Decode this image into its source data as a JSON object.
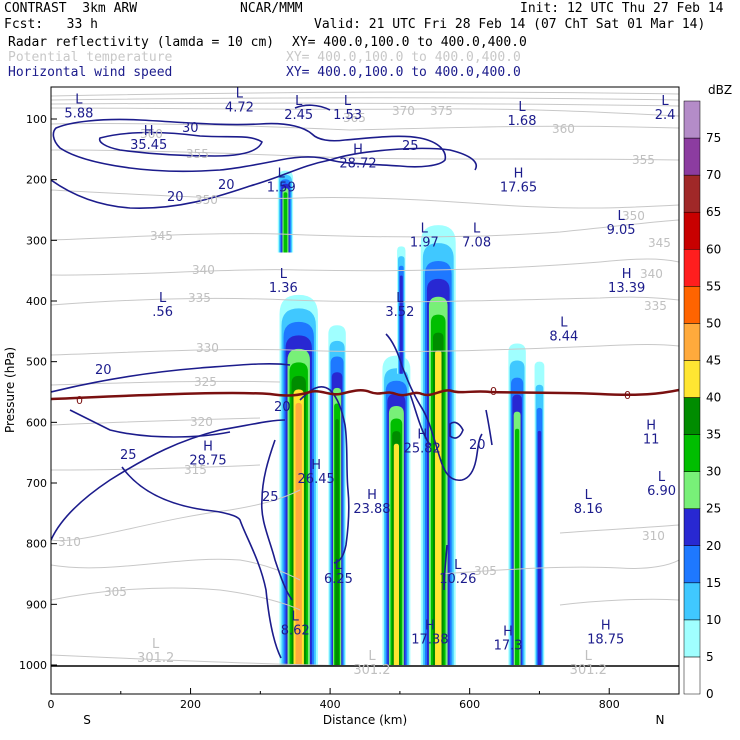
{
  "header": {
    "model": "CONTRAST  3km ARW",
    "org": "NCAR/MMM",
    "init": "Init: 12 UTC Thu 27 Feb 14",
    "fcst": "Fcst:   33 h",
    "valid": "Valid: 21 UTC Fri 28 Feb 14 (07 ChT Sat 01 Mar 14)",
    "fields": [
      {
        "name": "Radar reflectivity (lamda = 10 cm)",
        "xy": "XY= 400.0,100.0 to 400.0,400.0",
        "color": "#000000"
      },
      {
        "name": "Potential temperature",
        "xy": "XY= 400.0,100.0 to 400.0,400.0",
        "color": "#c8c8c8"
      },
      {
        "name": "Horizontal wind speed",
        "xy": "XY= 400.0,100.0 to 400.0,400.0",
        "color": "#1c1c8c"
      }
    ]
  },
  "chart_data": {
    "type": "heatmap",
    "title": "",
    "xlabel": "Distance (km)",
    "ylabel": "Pressure (hPa)",
    "xlim": [
      0,
      900
    ],
    "ylim": [
      1000,
      60
    ],
    "x_ticks": [
      "0",
      "200",
      "400",
      "600",
      "800"
    ],
    "y_ticks": [
      "100",
      "200",
      "300",
      "400",
      "500",
      "600",
      "700",
      "800",
      "900",
      "1000"
    ],
    "x_end_labels": {
      "left": "S",
      "right": "N"
    },
    "colorbar": {
      "unit": "dBZ",
      "levels": [
        "0",
        "5",
        "10",
        "15",
        "20",
        "25",
        "30",
        "35",
        "40",
        "45",
        "50",
        "55",
        "60",
        "65",
        "70",
        "75"
      ],
      "colors": [
        "#ffffff",
        "#a0ffff",
        "#40c8ff",
        "#1e78ff",
        "#2828d2",
        "#78f078",
        "#00be00",
        "#008c00",
        "#ffe632",
        "#ffaa3c",
        "#ff6400",
        "#ff1e1e",
        "#c80000",
        "#a02828",
        "#8c3ca0",
        "#b48cc8"
      ]
    },
    "freezing_level_label": "0",
    "theta_labels": [
      "375",
      "370",
      "365",
      "360",
      "360",
      "355",
      "355",
      "350",
      "350",
      "345",
      "345",
      "340",
      "340",
      "335",
      "335",
      "330",
      "325",
      "320",
      "315",
      "310",
      "310",
      "305",
      "305",
      "301.2",
      "301.2",
      "301.2"
    ],
    "wind_labels": [
      "30",
      "25",
      "20",
      "20",
      "20",
      "20",
      "25",
      "25",
      "20"
    ],
    "extrema": [
      {
        "kind": "L",
        "value": "5.88",
        "x": 40,
        "p": 78
      },
      {
        "kind": "L",
        "value": "4.72",
        "x": 270,
        "p": 68
      },
      {
        "kind": "L",
        "value": "2.45",
        "x": 355,
        "p": 80
      },
      {
        "kind": "L",
        "value": "1.53",
        "x": 425,
        "p": 80
      },
      {
        "kind": "L",
        "value": "1.68",
        "x": 675,
        "p": 90
      },
      {
        "kind": "L",
        "value": "2.4",
        "x": 880,
        "p": 80
      },
      {
        "kind": "H",
        "value": "35.45",
        "x": 140,
        "p": 130
      },
      {
        "kind": "H",
        "value": "28.72",
        "x": 440,
        "p": 160
      },
      {
        "kind": "L",
        "value": "1.59",
        "x": 330,
        "p": 200
      },
      {
        "kind": "H",
        "value": "17.65",
        "x": 670,
        "p": 200
      },
      {
        "kind": "L",
        "value": "9.05",
        "x": 817,
        "p": 270
      },
      {
        "kind": "L",
        "value": "1.97",
        "x": 535,
        "p": 290
      },
      {
        "kind": "L",
        "value": "7.08",
        "x": 610,
        "p": 290
      },
      {
        "kind": "L",
        "value": "1.36",
        "x": 333,
        "p": 365
      },
      {
        "kind": "H",
        "value": "13.39",
        "x": 825,
        "p": 365
      },
      {
        "kind": "L",
        "value": ".56",
        "x": 160,
        "p": 405
      },
      {
        "kind": "L",
        "value": "3.52",
        "x": 500,
        "p": 405
      },
      {
        "kind": "L",
        "value": "8.44",
        "x": 735,
        "p": 445
      },
      {
        "kind": "H",
        "value": "11",
        "x": 860,
        "p": 615
      },
      {
        "kind": "H",
        "value": "28.75",
        "x": 225,
        "p": 650
      },
      {
        "kind": "H",
        "value": "26.45",
        "x": 380,
        "p": 680
      },
      {
        "kind": "H",
        "value": "25.82",
        "x": 532,
        "p": 630
      },
      {
        "kind": "L",
        "value": "6.90",
        "x": 875,
        "p": 700
      },
      {
        "kind": "H",
        "value": "23.88",
        "x": 460,
        "p": 730
      },
      {
        "kind": "L",
        "value": "8.16",
        "x": 770,
        "p": 730
      },
      {
        "kind": "L",
        "value": "6.25",
        "x": 412,
        "p": 845
      },
      {
        "kind": "L",
        "value": "10.26",
        "x": 583,
        "p": 845
      },
      {
        "kind": "L",
        "value": "8.62",
        "x": 350,
        "p": 930
      },
      {
        "kind": "H",
        "value": "17.38",
        "x": 543,
        "p": 945
      },
      {
        "kind": "H",
        "value": "17.3",
        "x": 655,
        "p": 955
      },
      {
        "kind": "H",
        "value": "18.75",
        "x": 795,
        "p": 945
      },
      {
        "kind": "L",
        "value": "301.2",
        "x": 150,
        "p": 975
      },
      {
        "kind": "L",
        "value": "301.2",
        "x": 460,
        "p": 995
      },
      {
        "kind": "L",
        "value": "301.2",
        "x": 770,
        "p": 995
      }
    ],
    "convective_cells": [
      {
        "x": 336,
        "p_top": 185,
        "p_bottom": 320,
        "dbz_max": 30,
        "width_km": 22
      },
      {
        "x": 355,
        "p_top": 390,
        "p_bottom": 1000,
        "dbz_max": 45,
        "width_km": 55
      },
      {
        "x": 410,
        "p_top": 440,
        "p_bottom": 1000,
        "dbz_max": 35,
        "width_km": 25
      },
      {
        "x": 495,
        "p_top": 490,
        "p_bottom": 1000,
        "dbz_max": 40,
        "width_km": 40
      },
      {
        "x": 502,
        "p_top": 310,
        "p_bottom": 520,
        "dbz_max": 20,
        "width_km": 12
      },
      {
        "x": 555,
        "p_top": 275,
        "p_bottom": 1000,
        "dbz_max": 40,
        "width_km": 50
      },
      {
        "x": 668,
        "p_top": 470,
        "p_bottom": 1000,
        "dbz_max": 30,
        "width_km": 25
      },
      {
        "x": 700,
        "p_top": 500,
        "p_bottom": 1000,
        "dbz_max": 20,
        "width_km": 14
      }
    ]
  }
}
